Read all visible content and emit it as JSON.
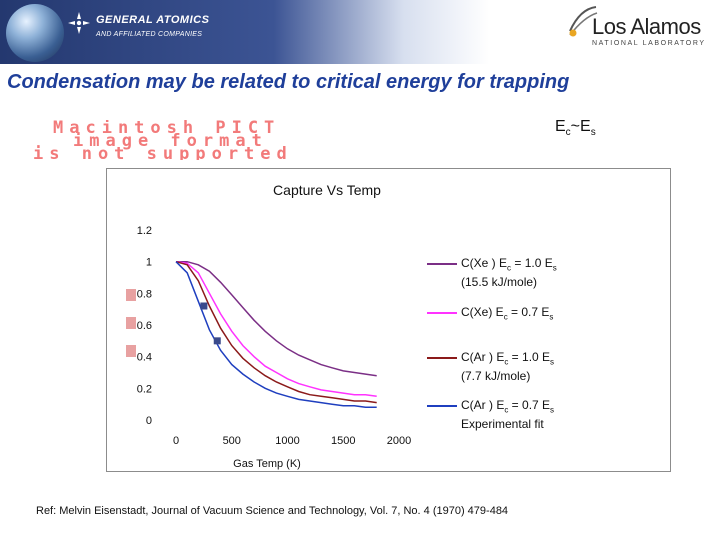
{
  "header": {
    "company": "GENERAL ATOMICS",
    "company_sub": "AND AFFILIATED COMPANIES",
    "lab": "Los Alamos",
    "lab_sub": "NATIONAL LABORATORY"
  },
  "slide_title": "Condensation may be related to critical energy for trapping",
  "placeholder_image_text": [
    "Macintosh PICT",
    "image format",
    "is not supported"
  ],
  "ec_es": {
    "main": "E",
    "sub1": "c",
    "mid": "~E",
    "sub2": "s"
  },
  "chart_data": {
    "type": "line",
    "title": "Capture Vs Temp",
    "xlabel": "Gas Temp (K)",
    "ylabel": "",
    "xlim": [
      0,
      2000
    ],
    "ylim": [
      0,
      1.2
    ],
    "x_ticks": [
      "0",
      "500",
      "1000",
      "1500",
      "2000"
    ],
    "y_ticks": [
      "0",
      "0.2",
      "0.4",
      "0.6",
      "0.8",
      "1",
      "1.2"
    ],
    "grid": false,
    "legend_position": "right",
    "series": [
      {
        "name": "C(Xe ) Ec = 1.0 Es (15.5 kJ/mole)",
        "color": "#7b2f86",
        "x": [
          0,
          100,
          200,
          300,
          400,
          500,
          600,
          700,
          800,
          900,
          1000,
          1100,
          1200,
          1300,
          1400,
          1500,
          1600,
          1700,
          1800
        ],
        "values": [
          1.0,
          1.0,
          0.98,
          0.94,
          0.87,
          0.79,
          0.71,
          0.63,
          0.56,
          0.5,
          0.45,
          0.41,
          0.38,
          0.35,
          0.33,
          0.31,
          0.3,
          0.29,
          0.28
        ]
      },
      {
        "name": "C(Xe) Ec = 0.7 Es",
        "color": "#ff33ff",
        "x": [
          0,
          100,
          200,
          300,
          400,
          500,
          600,
          700,
          800,
          900,
          1000,
          1100,
          1200,
          1300,
          1400,
          1500,
          1600,
          1700,
          1800
        ],
        "values": [
          1.0,
          0.99,
          0.93,
          0.8,
          0.67,
          0.56,
          0.47,
          0.4,
          0.34,
          0.3,
          0.26,
          0.23,
          0.21,
          0.19,
          0.18,
          0.17,
          0.16,
          0.16,
          0.15
        ]
      },
      {
        "name": "C(Ar ) Ec = 1.0 Es (7.7 kJ/mole)",
        "color": "#8b1a1a",
        "x": [
          0,
          100,
          200,
          300,
          400,
          500,
          600,
          700,
          800,
          900,
          1000,
          1100,
          1200,
          1300,
          1400,
          1500,
          1600,
          1700,
          1800
        ],
        "values": [
          1.0,
          0.98,
          0.88,
          0.72,
          0.58,
          0.47,
          0.39,
          0.33,
          0.28,
          0.24,
          0.21,
          0.18,
          0.16,
          0.15,
          0.14,
          0.13,
          0.12,
          0.12,
          0.11
        ]
      },
      {
        "name": "C(Ar ) Ec = 0.7 Es",
        "color": "#1f3fbf",
        "x": [
          0,
          100,
          200,
          300,
          400,
          500,
          600,
          700,
          800,
          900,
          1000,
          1100,
          1200,
          1300,
          1400,
          1500,
          1600,
          1700,
          1800
        ],
        "values": [
          1.0,
          0.93,
          0.75,
          0.57,
          0.44,
          0.35,
          0.29,
          0.24,
          0.2,
          0.17,
          0.15,
          0.13,
          0.12,
          0.11,
          0.1,
          0.09,
          0.09,
          0.08,
          0.08
        ]
      },
      {
        "name": "Experimental fit",
        "color": "#3a4a8c",
        "type": "scatter",
        "x": [
          250,
          370
        ],
        "values": [
          0.72,
          0.5
        ]
      }
    ],
    "legend": [
      {
        "line1": "C(Xe ) E",
        "sub1": "c",
        "eq": " = 1.0 E",
        "sub2": "s",
        "line2": "(15.5 kJ/mole)",
        "color": "#7b2f86"
      },
      {
        "line1": "C(Xe) E",
        "sub1": "c",
        "eq": " = 0.7 E",
        "sub2": "s",
        "line2": "",
        "color": "#ff33ff"
      },
      {
        "line1": "C(Ar ) E",
        "sub1": "c",
        "eq": " = 1.0 E",
        "sub2": "s",
        "line2": "(7.7 kJ/mole)",
        "color": "#8b1a1a"
      },
      {
        "line1": "C(Ar ) E",
        "sub1": "c",
        "eq": " = 0.7 E",
        "sub2": "s",
        "line2": "Experimental fit",
        "color": "#1f3fbf"
      }
    ]
  },
  "reference": "Ref: Melvin Eisenstadt, Journal of Vacuum Science and Technology, Vol. 7, No. 4 (1970) 479-484"
}
